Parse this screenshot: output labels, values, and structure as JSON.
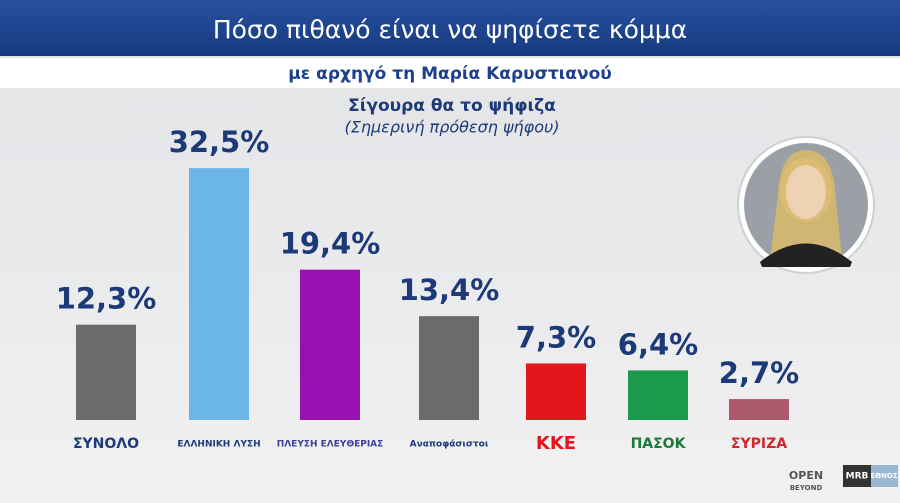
{
  "chart_data": {
    "type": "bar",
    "title": "Πόσο πιθανό είναι να ψηφίσετε κόμμα",
    "subtitle": "με αρχηγό τη Μαρία Καρυστιανού",
    "heading": "Σίγουρα θα το ψήφιζα",
    "subheading": "(Σημερινή πρόθεση ψήφου)",
    "categories": [
      "ΣΥΝΟΛΟ",
      "ΕΛΛΗΝΙΚΗ ΛΥΣΗ",
      "ΠΛΕΥΣΗ ΕΛΕΥΘΕΡΙΑΣ",
      "Αναποφάσιστοι",
      "ΚΚΕ",
      "ΠΑΣΟΚ",
      "ΣΥΡΙΖΑ"
    ],
    "values": [
      12.3,
      32.5,
      19.4,
      13.4,
      7.3,
      6.4,
      2.7
    ],
    "value_labels": [
      "12,3%",
      "32,5%",
      "19,4%",
      "13,4%",
      "7,3%",
      "6,4%",
      "2,7%"
    ],
    "colors": [
      "#6b6b6b",
      "#6cb6e6",
      "#9812b2",
      "#6b6b6b",
      "#e3161b",
      "#1a9a4a",
      "#aa5a6c"
    ]
  },
  "branding": [
    "OPEN",
    "BEYOND",
    "MRB",
    "ΕΘΝΟΣ"
  ]
}
